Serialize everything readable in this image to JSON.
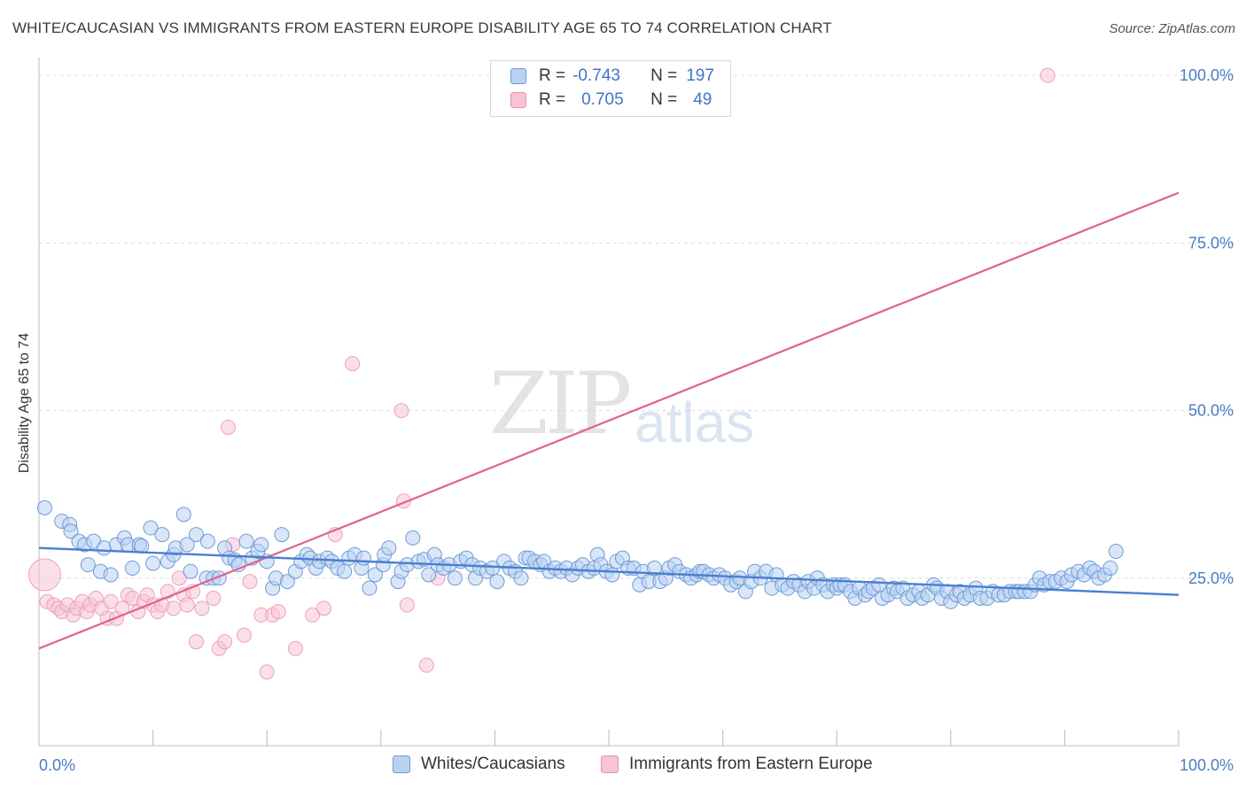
{
  "title": "WHITE/CAUCASIAN VS IMMIGRANTS FROM EASTERN EUROPE DISABILITY AGE 65 TO 74 CORRELATION CHART",
  "source": "Source: ZipAtlas.com",
  "watermark": {
    "zip": "ZIP",
    "atlas": "atlas"
  },
  "colors": {
    "blue": "#4a7fd0",
    "blue_fill": "#b9d2f2",
    "pink": "#e0618e",
    "pink_fill": "#f7c4d5",
    "tick_text": "#4a7cc4"
  },
  "legend": {
    "rows": [
      {
        "r_label": "R =",
        "r_value": "-0.743",
        "n_label": "N =",
        "n_value": "197"
      },
      {
        "r_label": "R =",
        "r_value": "0.705",
        "n_label": "N =",
        "n_value": "49"
      }
    ],
    "bottom": [
      "Whites/Caucasians",
      "Immigrants from Eastern Europe"
    ]
  },
  "chart_data": {
    "type": "scatter",
    "title": "WHITE/CAUCASIAN VS IMMIGRANTS FROM EASTERN EUROPE DISABILITY AGE 65 TO 74 CORRELATION CHART",
    "xlabel": "",
    "ylabel": "Disability Age 65 to 74",
    "xlim": [
      0,
      100
    ],
    "ylim": [
      0,
      102
    ],
    "x_tick_labels": [
      "0.0%",
      "100.0%"
    ],
    "y_ticks": [
      25,
      50,
      75,
      100
    ],
    "y_tick_labels": [
      "25.0%",
      "50.0%",
      "75.0%",
      "100.0%"
    ],
    "grid": true,
    "series": [
      {
        "name": "Whites/Caucasians",
        "color": "#4a7fd0",
        "trend": {
          "x": [
            0,
            100
          ],
          "y": [
            29.5,
            22.5
          ]
        },
        "points": [
          [
            0.5,
            35.5
          ],
          [
            2,
            33.5
          ],
          [
            2.7,
            33
          ],
          [
            2.8,
            32
          ],
          [
            3.5,
            30.5
          ],
          [
            4,
            30
          ],
          [
            4.3,
            27
          ],
          [
            4.8,
            30.5
          ],
          [
            5.4,
            26
          ],
          [
            5.7,
            29.5
          ],
          [
            6.3,
            25.5
          ],
          [
            6.8,
            30
          ],
          [
            7.5,
            31
          ],
          [
            7.8,
            30
          ],
          [
            8.2,
            26.5
          ],
          [
            8.8,
            30
          ],
          [
            9,
            29.8
          ],
          [
            9.8,
            32.5
          ],
          [
            10,
            27.2
          ],
          [
            10.8,
            31.5
          ],
          [
            11.3,
            27.5
          ],
          [
            11.8,
            28.5
          ],
          [
            12,
            29.5
          ],
          [
            12.7,
            34.5
          ],
          [
            13,
            30
          ],
          [
            13.3,
            26
          ],
          [
            13.8,
            31.5
          ],
          [
            14.7,
            25
          ],
          [
            14.8,
            30.5
          ],
          [
            15.3,
            25
          ],
          [
            15.8,
            25
          ],
          [
            16.3,
            29.5
          ],
          [
            16.7,
            28
          ],
          [
            17.2,
            27.7
          ],
          [
            17.5,
            27
          ],
          [
            18.2,
            30.5
          ],
          [
            18.7,
            28
          ],
          [
            19.2,
            29
          ],
          [
            19.5,
            30
          ],
          [
            20,
            27.5
          ],
          [
            20.5,
            23.5
          ],
          [
            20.8,
            25
          ],
          [
            21.3,
            31.5
          ],
          [
            21.8,
            24.5
          ],
          [
            22.5,
            26
          ],
          [
            23,
            27.5
          ],
          [
            23.5,
            28.5
          ],
          [
            23.8,
            28
          ],
          [
            24.3,
            26.5
          ],
          [
            24.6,
            27.5
          ],
          [
            25.3,
            28
          ],
          [
            25.7,
            27.5
          ],
          [
            26.2,
            26.5
          ],
          [
            26.8,
            26
          ],
          [
            27.2,
            28
          ],
          [
            27.7,
            28.5
          ],
          [
            28.3,
            26.5
          ],
          [
            28.5,
            28
          ],
          [
            29,
            23.5
          ],
          [
            29.5,
            25.5
          ],
          [
            30.2,
            27
          ],
          [
            30.3,
            28.5
          ],
          [
            30.7,
            29.5
          ],
          [
            31.5,
            24.5
          ],
          [
            31.8,
            26
          ],
          [
            32.3,
            27
          ],
          [
            32.8,
            31
          ],
          [
            33.3,
            27.5
          ],
          [
            33.8,
            27.8
          ],
          [
            34.2,
            25.5
          ],
          [
            34.7,
            28.5
          ],
          [
            35,
            27
          ],
          [
            35.5,
            26.5
          ],
          [
            36,
            27
          ],
          [
            36.5,
            25
          ],
          [
            37,
            27.5
          ],
          [
            37.5,
            28
          ],
          [
            38,
            27
          ],
          [
            38.3,
            25
          ],
          [
            38.7,
            26.5
          ],
          [
            39.3,
            26
          ],
          [
            39.8,
            26.5
          ],
          [
            40.2,
            24.5
          ],
          [
            40.8,
            27.5
          ],
          [
            41.3,
            26.5
          ],
          [
            41.8,
            26
          ],
          [
            42.3,
            25
          ],
          [
            42.7,
            28
          ],
          [
            43,
            28
          ],
          [
            43.5,
            27.5
          ],
          [
            44,
            27
          ],
          [
            44.3,
            27.5
          ],
          [
            44.8,
            26
          ],
          [
            45.3,
            26.5
          ],
          [
            45.8,
            26
          ],
          [
            46.3,
            26.5
          ],
          [
            46.8,
            25.5
          ],
          [
            47.3,
            26.5
          ],
          [
            47.7,
            27
          ],
          [
            48.2,
            26
          ],
          [
            48.7,
            26.5
          ],
          [
            49,
            28.5
          ],
          [
            49.3,
            27
          ],
          [
            49.8,
            26
          ],
          [
            50.3,
            25.5
          ],
          [
            50.7,
            27.5
          ],
          [
            51.2,
            28
          ],
          [
            51.7,
            26.5
          ],
          [
            52.2,
            26.5
          ],
          [
            52.7,
            24
          ],
          [
            53,
            26
          ],
          [
            53.5,
            24.5
          ],
          [
            54,
            26.5
          ],
          [
            54.5,
            24.5
          ],
          [
            55,
            25
          ],
          [
            55.3,
            26.5
          ],
          [
            55.8,
            27
          ],
          [
            56.2,
            26
          ],
          [
            56.8,
            25.5
          ],
          [
            57.2,
            25
          ],
          [
            57.7,
            25.5
          ],
          [
            58,
            26
          ],
          [
            58.3,
            26
          ],
          [
            58.8,
            25.5
          ],
          [
            59.2,
            25
          ],
          [
            59.7,
            25.5
          ],
          [
            60.2,
            25
          ],
          [
            60.7,
            24
          ],
          [
            61.2,
            24.5
          ],
          [
            61.5,
            25
          ],
          [
            62,
            23
          ],
          [
            62.5,
            24.5
          ],
          [
            62.8,
            26
          ],
          [
            63.3,
            25
          ],
          [
            63.8,
            26
          ],
          [
            64.3,
            23.5
          ],
          [
            64.7,
            25.5
          ],
          [
            65.2,
            24
          ],
          [
            65.7,
            23.5
          ],
          [
            66.2,
            24.5
          ],
          [
            66.7,
            24
          ],
          [
            67.2,
            23
          ],
          [
            67.5,
            24.5
          ],
          [
            68,
            23.5
          ],
          [
            68.3,
            25
          ],
          [
            68.8,
            24
          ],
          [
            69.2,
            23
          ],
          [
            69.7,
            24
          ],
          [
            70,
            23.5
          ],
          [
            70.3,
            24
          ],
          [
            70.7,
            24
          ],
          [
            71.2,
            23
          ],
          [
            71.6,
            22
          ],
          [
            72,
            23.5
          ],
          [
            72.5,
            22.5
          ],
          [
            72.8,
            23
          ],
          [
            73.2,
            23.5
          ],
          [
            73.7,
            24
          ],
          [
            74,
            22
          ],
          [
            74.5,
            22.5
          ],
          [
            75,
            23.5
          ],
          [
            75.3,
            23
          ],
          [
            75.8,
            23.5
          ],
          [
            76.2,
            22
          ],
          [
            76.7,
            22.5
          ],
          [
            77.2,
            23
          ],
          [
            77.5,
            22
          ],
          [
            78,
            22.5
          ],
          [
            78.5,
            24
          ],
          [
            78.8,
            23.5
          ],
          [
            79.2,
            22
          ],
          [
            79.7,
            23
          ],
          [
            80,
            21.5
          ],
          [
            80.5,
            22.5
          ],
          [
            80.8,
            23
          ],
          [
            81.2,
            22
          ],
          [
            81.7,
            22.5
          ],
          [
            82.2,
            23.5
          ],
          [
            82.6,
            22
          ],
          [
            83.2,
            22
          ],
          [
            83.7,
            23
          ],
          [
            84.2,
            22.5
          ],
          [
            84.7,
            22.5
          ],
          [
            85.2,
            23
          ],
          [
            85.7,
            23
          ],
          [
            86,
            23
          ],
          [
            86.5,
            23
          ],
          [
            87,
            23
          ],
          [
            87.4,
            24
          ],
          [
            87.8,
            25
          ],
          [
            88.2,
            24
          ],
          [
            88.7,
            24.5
          ],
          [
            89.2,
            24.5
          ],
          [
            89.7,
            25
          ],
          [
            90.2,
            24.5
          ],
          [
            90.6,
            25.5
          ],
          [
            91.2,
            26
          ],
          [
            91.7,
            25.5
          ],
          [
            92.2,
            26.5
          ],
          [
            92.6,
            26
          ],
          [
            93,
            25
          ],
          [
            93.5,
            25.5
          ],
          [
            94,
            26.5
          ],
          [
            94.5,
            29
          ]
        ]
      },
      {
        "name": "Immigrants from Eastern Europe",
        "color": "#e0618e",
        "trend": {
          "x": [
            0,
            100
          ],
          "y": [
            14.5,
            82.5
          ]
        },
        "points": [
          [
            0.5,
            25.5
          ],
          [
            0.7,
            21.5
          ],
          [
            1.3,
            21
          ],
          [
            1.7,
            20.5
          ],
          [
            2,
            20
          ],
          [
            2.5,
            21
          ],
          [
            3,
            19.5
          ],
          [
            3.3,
            20.5
          ],
          [
            3.8,
            21.5
          ],
          [
            4.2,
            20
          ],
          [
            4.5,
            21
          ],
          [
            5,
            22
          ],
          [
            5.5,
            20.5
          ],
          [
            6,
            19
          ],
          [
            6.3,
            21.5
          ],
          [
            6.8,
            19
          ],
          [
            7.3,
            20.5
          ],
          [
            7.8,
            22.5
          ],
          [
            8.2,
            22
          ],
          [
            8.7,
            20
          ],
          [
            9.2,
            21.5
          ],
          [
            9.5,
            22.5
          ],
          [
            10,
            21
          ],
          [
            10.4,
            20
          ],
          [
            10.8,
            21
          ],
          [
            11.3,
            23
          ],
          [
            11.8,
            20.5
          ],
          [
            12.3,
            25
          ],
          [
            12.7,
            22.5
          ],
          [
            13,
            21
          ],
          [
            13.5,
            23
          ],
          [
            13.8,
            15.5
          ],
          [
            14.3,
            20.5
          ],
          [
            15.3,
            22
          ],
          [
            15.8,
            14.5
          ],
          [
            16.3,
            15.5
          ],
          [
            16.6,
            47.5
          ],
          [
            17,
            30
          ],
          [
            18,
            16.5
          ],
          [
            18.5,
            24.5
          ],
          [
            19.5,
            19.5
          ],
          [
            20,
            11
          ],
          [
            20.5,
            19.5
          ],
          [
            21,
            20
          ],
          [
            22.5,
            14.5
          ],
          [
            24,
            19.5
          ],
          [
            25,
            20.5
          ],
          [
            26,
            31.5
          ],
          [
            27.5,
            57
          ],
          [
            31.8,
            50
          ],
          [
            32,
            36.5
          ],
          [
            32.3,
            21
          ],
          [
            34,
            12
          ],
          [
            35,
            25
          ],
          [
            88.5,
            100
          ]
        ]
      }
    ]
  }
}
